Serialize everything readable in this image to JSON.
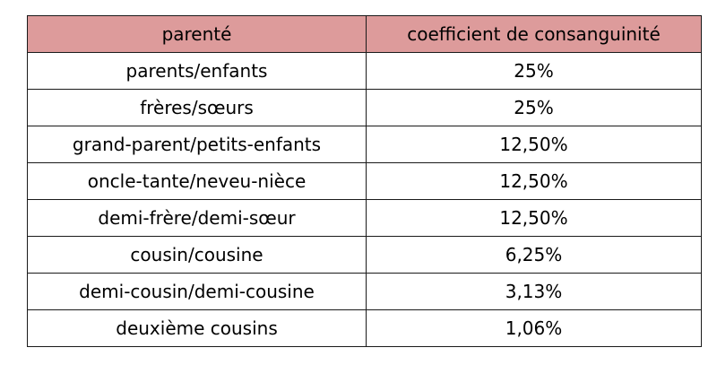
{
  "colors": {
    "header_background": "#dd9b9b",
    "border": "#1a1a1a",
    "text": "#000000"
  },
  "table": {
    "headers": [
      "parenté",
      "coefficient de consanguinité"
    ],
    "rows": [
      [
        "parents/enfants",
        "25%"
      ],
      [
        "frères/sœurs",
        "25%"
      ],
      [
        "grand-parent/petits-enfants",
        "12,50%"
      ],
      [
        "oncle-tante/neveu-nièce",
        "12,50%"
      ],
      [
        "demi-frère/demi-sœur",
        "12,50%"
      ],
      [
        "cousin/cousine",
        "6,25%"
      ],
      [
        "demi-cousin/demi-cousine",
        "3,13%"
      ],
      [
        "deuxième cousins",
        "1,06%"
      ]
    ]
  }
}
